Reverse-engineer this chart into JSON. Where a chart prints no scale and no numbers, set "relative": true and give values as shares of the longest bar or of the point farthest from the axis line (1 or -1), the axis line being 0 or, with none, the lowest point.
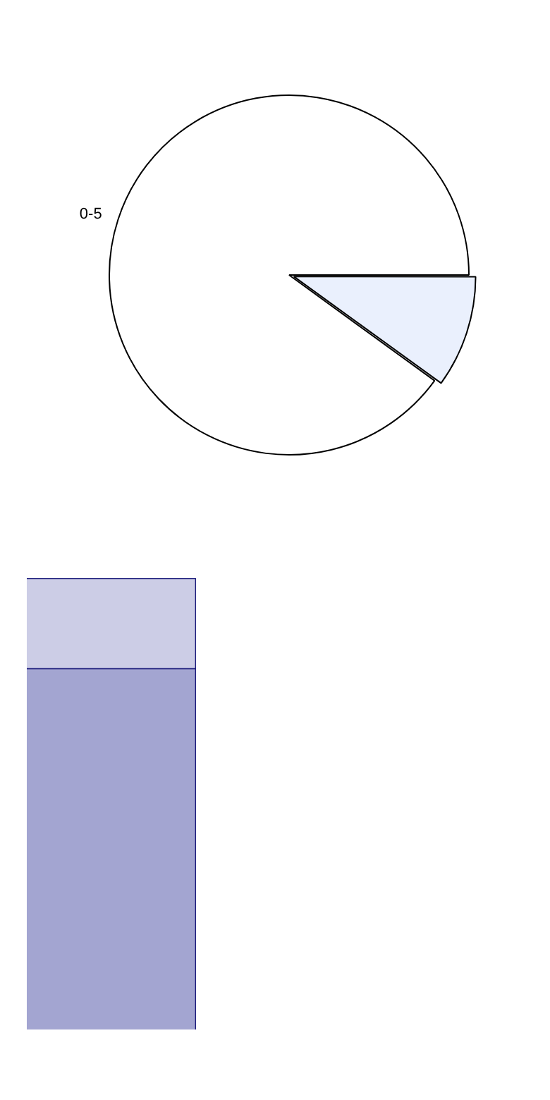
{
  "chart_data": [
    {
      "type": "pie",
      "categories": [
        "0-5",
        null
      ],
      "values": [
        90,
        10
      ],
      "colors": [
        "#ffffff",
        "#eaf0fd"
      ]
    },
    {
      "type": "bar",
      "relative": true,
      "stacked": true,
      "categories": [
        null
      ],
      "series": [
        {
          "color": "#a3a5d1",
          "values": [
            0.8
          ]
        },
        {
          "color": "#cccde6",
          "values": [
            0.2
          ]
        }
      ]
    }
  ]
}
